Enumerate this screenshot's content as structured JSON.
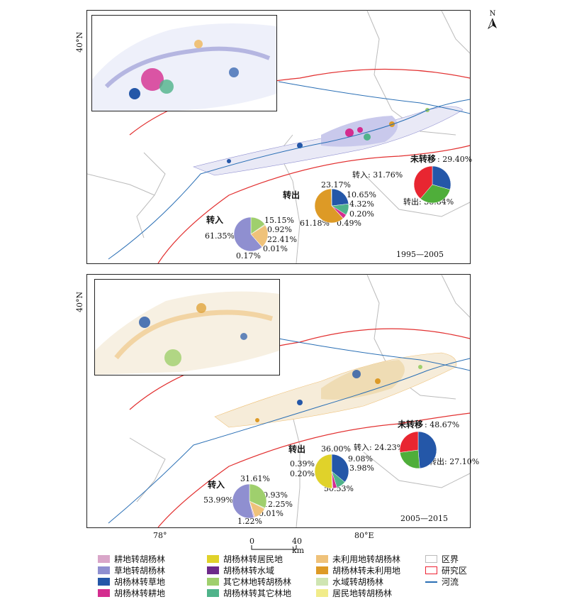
{
  "north_label": "N",
  "latitude_label": "40°N",
  "longitudes": [
    "78°",
    "80°E"
  ],
  "scale": {
    "zero": "0",
    "end": "40 km"
  },
  "panels": [
    {
      "period": "1995—2005",
      "unchanged": {
        "label": "未转移",
        "value": ": 29.40%"
      },
      "in_label": "转入: 31.76%",
      "out_label": "转出: 38.84%",
      "out_title": "转出",
      "in_title": "转入",
      "out_values": [
        "23.17%",
        "10.65%",
        "4.32%",
        "0.20%",
        "61.18%",
        "0.49%"
      ],
      "in_values": [
        "15.15%",
        "0.92%",
        "61.35%",
        "22.41%",
        "0.17%",
        "0.01%"
      ],
      "summary_pie": [
        29.4,
        31.76,
        38.84
      ],
      "out_pie": [
        23.17,
        10.65,
        4.32,
        0.2,
        61.18,
        0.49
      ],
      "in_pie": [
        15.15,
        0.92,
        22.41,
        0.01,
        0.17,
        61.35
      ]
    },
    {
      "period": "2005—2015",
      "unchanged": {
        "label": "未转移",
        "value": ": 48.67%"
      },
      "in_label": "转入: 24.23%",
      "out_label": "转出: 27.10%",
      "out_title": "转出",
      "in_title": "转入",
      "out_values": [
        "36.00%",
        "9.08%",
        "3.98%",
        "0.39%",
        "0.20%",
        "50.53%"
      ],
      "in_values": [
        "31.61%",
        "0.93%",
        "53.99%",
        "12.25%",
        "0.01%",
        "1.22%"
      ],
      "summary_pie": [
        48.67,
        24.23,
        27.1
      ],
      "out_pie": [
        36.0,
        9.08,
        3.98,
        0.39,
        0.2,
        50.53
      ],
      "in_pie": [
        31.61,
        0.93,
        12.25,
        0.01,
        1.22,
        53.99
      ]
    }
  ],
  "colors": {
    "farmland_to_poplar": "#d9a6c9",
    "grass_to_poplar": "#8f8fd0",
    "poplar_to_grass": "#2457a8",
    "poplar_to_farm": "#d42d8f",
    "poplar_to_residential": "#e0d22a",
    "poplar_to_water": "#6d2a8a",
    "forest_to_poplar": "#9fcf6d",
    "poplar_to_forest": "#4fb38a",
    "unused_to_poplar": "#efc27a",
    "poplar_to_unused": "#dd9a26",
    "water_to_poplar": "#cfe5b2",
    "residential_to_poplar": "#f1ec8a",
    "unchanged": "#2457a8",
    "in": "#4fae3a",
    "out": "#e82631",
    "boundary": "#bbbbbb",
    "study_area": "#e23030",
    "river": "#2a6fb5"
  },
  "legend": [
    {
      "label": "耕地转胡杨林",
      "color": "#d9a6c9"
    },
    {
      "label": "草地转胡杨林",
      "color": "#8f8fd0"
    },
    {
      "label": "胡杨林转草地",
      "color": "#2457a8"
    },
    {
      "label": "胡杨林转耕地",
      "color": "#d42d8f"
    },
    {
      "label": "胡杨林转居民地",
      "color": "#e0d22a"
    },
    {
      "label": "胡杨林转水域",
      "color": "#6d2a8a"
    },
    {
      "label": "其它林地转胡杨林",
      "color": "#9fcf6d"
    },
    {
      "label": "胡杨林转其它林地",
      "color": "#4fb38a"
    },
    {
      "label": "未利用地转胡杨林",
      "color": "#efc27a"
    },
    {
      "label": "胡杨林转未利用地",
      "color": "#dd9a26"
    },
    {
      "label": "水域转胡杨林",
      "color": "#cfe5b2"
    },
    {
      "label": "居民地转胡杨林",
      "color": "#f1ec8a"
    },
    {
      "label": "区界",
      "type": "outline"
    },
    {
      "label": "研究区",
      "type": "red"
    },
    {
      "label": "河流",
      "type": "line"
    }
  ]
}
